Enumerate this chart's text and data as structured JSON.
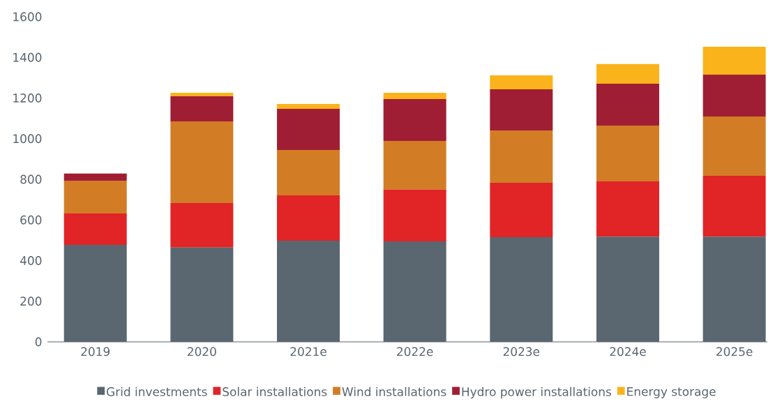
{
  "chart_data": {
    "type": "bar",
    "stacked": true,
    "categories": [
      "2019",
      "2020",
      "2021e",
      "2022e",
      "2023e",
      "2024e",
      "2025e"
    ],
    "series": [
      {
        "name": "Grid investments",
        "color": "#5a6670",
        "values": [
          477,
          464,
          498,
          494,
          515,
          518,
          518
        ]
      },
      {
        "name": "Solar installations",
        "color": "#e12426",
        "values": [
          155,
          219,
          223,
          255,
          268,
          272,
          299
        ]
      },
      {
        "name": "Wind installations",
        "color": "#d27d26",
        "values": [
          161,
          402,
          223,
          240,
          257,
          274,
          292
        ]
      },
      {
        "name": "Hydro power installations",
        "color": "#a01e34",
        "values": [
          35,
          124,
          203,
          206,
          203,
          206,
          206
        ]
      },
      {
        "name": "Energy storage",
        "color": "#fbb31c",
        "values": [
          0,
          17,
          24,
          31,
          69,
          97,
          137
        ]
      }
    ],
    "ylim": [
      0,
      1600
    ],
    "yticks": [
      0,
      200,
      400,
      600,
      800,
      1000,
      1200,
      1400,
      1600
    ],
    "grid": false,
    "legend": "bottom"
  }
}
